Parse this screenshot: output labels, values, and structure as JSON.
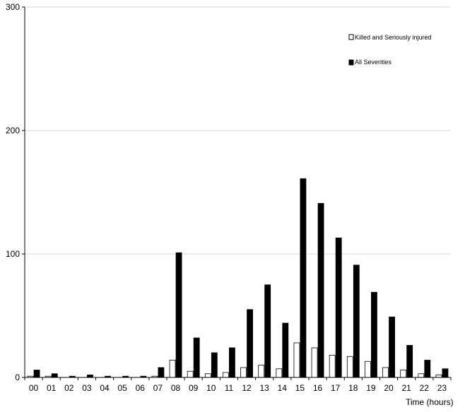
{
  "chart_data": {
    "type": "bar",
    "title": "",
    "xlabel": "Time (hours)",
    "ylabel": "",
    "ylim": [
      0,
      300
    ],
    "yticks": [
      "0",
      "100",
      "200",
      "300"
    ],
    "grid": true,
    "legend_position": "top-right",
    "categories": [
      "00",
      "01",
      "02",
      "03",
      "04",
      "05",
      "06",
      "07",
      "08",
      "09",
      "10",
      "11",
      "12",
      "13",
      "14",
      "15",
      "16",
      "17",
      "18",
      "19",
      "20",
      "21",
      "22",
      "23"
    ],
    "series": [
      {
        "name": "Killed and Seriously injured",
        "fill": "#ffffff",
        "stroke": "#000000",
        "values": [
          1,
          1,
          0,
          0,
          0,
          0,
          0,
          1,
          14,
          5,
          3,
          4,
          8,
          10,
          7,
          28,
          24,
          18,
          17,
          13,
          8,
          6,
          3,
          2
        ]
      },
      {
        "name": "All Severities",
        "fill": "#000000",
        "stroke": "#000000",
        "values": [
          6,
          3,
          1,
          2,
          1,
          1,
          1,
          8,
          101,
          32,
          20,
          24,
          55,
          75,
          44,
          161,
          141,
          113,
          91,
          69,
          49,
          26,
          14,
          7
        ]
      }
    ]
  }
}
